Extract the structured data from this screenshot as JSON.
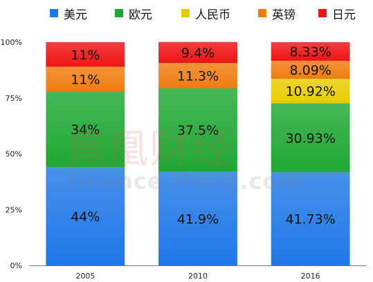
{
  "chart_data": {
    "type": "bar",
    "stacked": true,
    "percent": true,
    "categories": [
      "2005",
      "2010",
      "2016"
    ],
    "series": [
      {
        "name": "美元",
        "color": "#1f78e8",
        "values": [
          44,
          41.9,
          41.73
        ],
        "labels": [
          "44%",
          "41.9%",
          "41.73%"
        ]
      },
      {
        "name": "欧元",
        "color": "#1ea832",
        "values": [
          34,
          37.5,
          30.93
        ],
        "labels": [
          "34%",
          "37.5%",
          "30.93%"
        ]
      },
      {
        "name": "人民币",
        "color": "#e8cc00",
        "values": [
          0,
          0,
          10.92
        ],
        "labels": [
          "",
          "",
          "10.92%"
        ]
      },
      {
        "name": "英镑",
        "color": "#f07c10",
        "values": [
          11,
          11.3,
          8.09
        ],
        "labels": [
          "11%",
          "11.3%",
          "8.09%"
        ]
      },
      {
        "name": "日元",
        "color": "#f01414",
        "values": [
          11,
          9.4,
          8.33
        ],
        "labels": [
          "11%",
          "9.4%",
          "8.33%"
        ]
      }
    ],
    "yticks": [
      "0%",
      "25%",
      "50%",
      "75%",
      "100%"
    ],
    "ylim": [
      0,
      100
    ],
    "legend_position": "top"
  },
  "watermark": {
    "brand": "鳳凰财经",
    "url": "finance.ifeng.com"
  }
}
